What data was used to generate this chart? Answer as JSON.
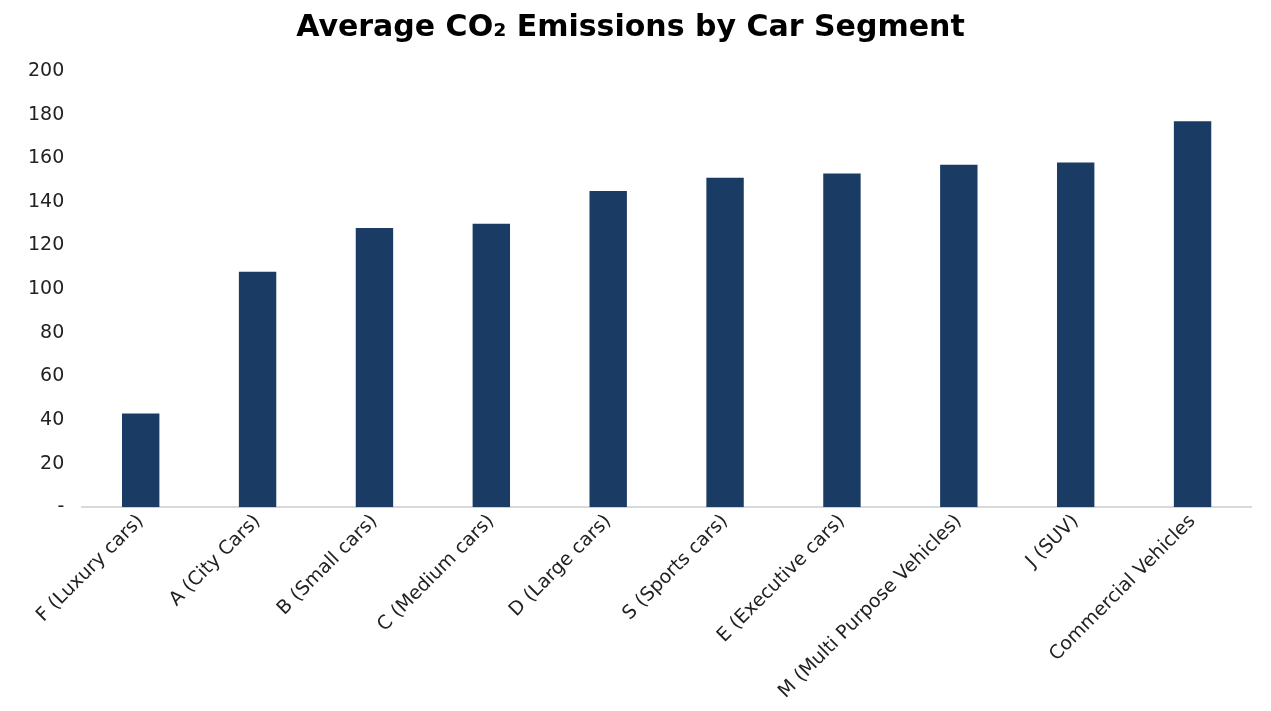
{
  "chart_data": {
    "type": "bar",
    "title": "Average CO₂ Emissions by Car Segment",
    "categories": [
      "F (Luxury cars)",
      "A (City Cars)",
      "B (Small cars)",
      "C (Medium cars)",
      "D (Large cars)",
      "S (Sports cars)",
      "E (Executive cars)",
      "M (Multi Purpose Vehicles)",
      "J (SUV)",
      "Commercial Vehicles"
    ],
    "values": [
      43,
      108,
      128,
      130,
      145,
      151,
      153,
      157,
      158,
      177
    ],
    "color": "#1a3c64",
    "ylim": [
      0,
      200
    ],
    "yticks": [
      {
        "value": 0,
        "label": "-"
      },
      20,
      40,
      60,
      80,
      100,
      120,
      140,
      160,
      180,
      200
    ],
    "grid": false,
    "legend": false
  }
}
